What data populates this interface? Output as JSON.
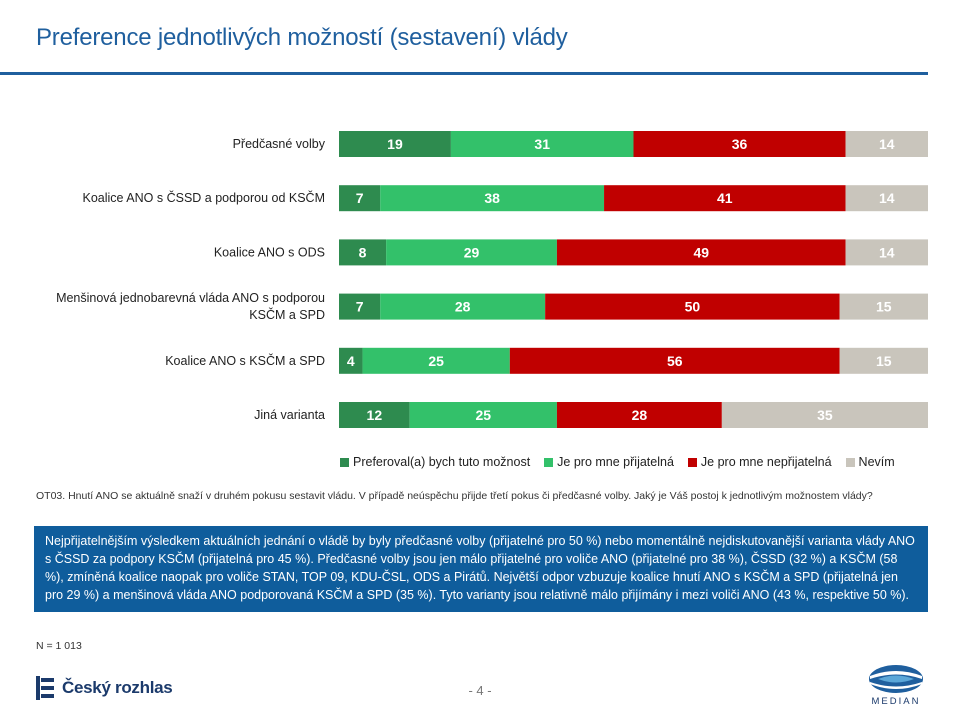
{
  "header": {
    "title": "Preference jednotlivých možností (sestavení) vlády"
  },
  "chart_data": {
    "type": "bar",
    "orientation": "horizontal-stacked-100",
    "categories": [
      [
        "Předčasné volby"
      ],
      [
        "Koalice ANO s ČSSD a podporou od KSČM"
      ],
      [
        "Koalice ANO s ODS"
      ],
      [
        "Menšinová jednobarevná vláda ANO s podporou",
        "KSČM a SPD"
      ],
      [
        "Koalice ANO s KSČM a SPD"
      ],
      [
        "Jiná varianta"
      ]
    ],
    "series": [
      {
        "name": "Preferoval(a) bych tuto možnost",
        "color": "#2e8b4f",
        "values": [
          19,
          7,
          8,
          7,
          4,
          12
        ]
      },
      {
        "name": "Je pro mne přijatelná",
        "color": "#33c16a",
        "values": [
          31,
          38,
          29,
          28,
          25,
          25
        ]
      },
      {
        "name": "Je pro mne nepřijatelná",
        "color": "#c00000",
        "values": [
          36,
          41,
          49,
          50,
          56,
          28
        ]
      },
      {
        "name": "Nevím",
        "color": "#c9c5bc",
        "values": [
          14,
          14,
          14,
          15,
          15,
          35
        ]
      }
    ],
    "xlim": [
      0,
      100
    ],
    "legend": "bottom"
  },
  "question": "OT03. Hnutí ANO se aktuálně snaží v druhém pokusu sestavit vládu. V případě neúspěchu přijde třetí pokus či předčasné volby. Jaký je Váš postoj k jednotlivým možnostem vlády?",
  "summary": "Nejpřijatelnějším výsledkem aktuálních jednání o vládě by byly předčasné volby (přijatelné pro 50 %) nebo momentálně nejdiskutovanější varianta vlády ANO s ČSSD za podpory KSČM (přijatelná pro 45 %). Předčasné volby jsou jen málo přijatelné pro voliče ANO (přijatelné pro 38 %), ČSSD (32 %) a KSČM (58 %), zmíněná koalice naopak pro voliče STAN, TOP 09, KDU-ČSL, ODS a Pirátů. Největší odpor vzbuzuje koalice hnutí ANO s KSČM a SPD (přijatelná jen pro 29 %) a menšinová vláda ANO podporovaná KSČM a SPD (35 %). Tyto varianty jsou relativně málo přijímány i mezi voliči ANO (43 %, respektive 50 %).",
  "footer": {
    "sample": "N = 1 013",
    "page": "- 4 -",
    "logo_left": "Český rozhlas",
    "logo_right": "MEDIAN"
  },
  "colors": {
    "title": "#1f5f9e",
    "summary_bg": "#0f5d9c"
  }
}
